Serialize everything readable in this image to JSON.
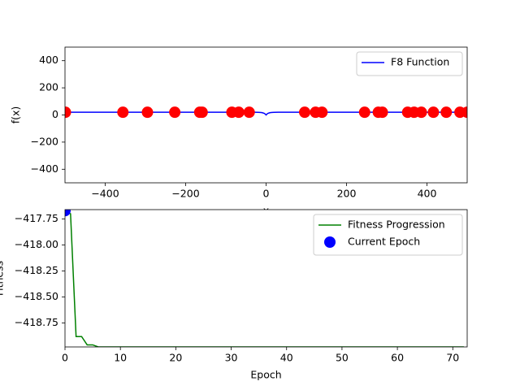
{
  "chart_data": [
    {
      "type": "line",
      "xlabel": "x",
      "ylabel": "f(x)",
      "xlim": [
        -500,
        500
      ],
      "ylim": [
        -500,
        500
      ],
      "xticks": [
        {
          "value": -400,
          "label": "−400"
        },
        {
          "value": -200,
          "label": "−200"
        },
        0,
        200,
        400
      ],
      "yticks": [
        {
          "value": -400,
          "label": "−400"
        },
        {
          "value": -200,
          "label": "−200"
        },
        0,
        200,
        400
      ],
      "legend": "upper right",
      "series": [
        {
          "name": "F8 Function",
          "color": "#0000ff",
          "style": "line",
          "x": [
            -500,
            -100,
            -30,
            -20,
            -15,
            -10,
            -5,
            -2,
            0,
            2,
            5,
            10,
            15,
            20,
            30,
            100,
            500
          ],
          "values": [
            20,
            20,
            19.9,
            19.6,
            19.0,
            17.3,
            12.6,
            6.6,
            0,
            6.6,
            12.6,
            17.3,
            19.0,
            19.6,
            19.9,
            20,
            20
          ]
        },
        {
          "color": "#ff0000",
          "style": "marker",
          "x": [
            -499,
            -356,
            -295,
            -227,
            -165,
            -159,
            -85,
            -68,
            -42,
            96,
            123,
            139,
            245,
            279,
            289,
            352,
            368,
            386,
            416,
            448,
            482,
            500
          ],
          "values": [
            20,
            20,
            20,
            20,
            20,
            20,
            20,
            20,
            20,
            20,
            20,
            20,
            20,
            20,
            20,
            20,
            20,
            20,
            20,
            20,
            20,
            20
          ]
        }
      ]
    },
    {
      "type": "line",
      "xlabel": "Epoch",
      "ylabel": "Fitness",
      "xlim": [
        0,
        72.6
      ],
      "ylim": [
        -418.98,
        -417.66
      ],
      "xticks": [
        0,
        10,
        20,
        30,
        40,
        50,
        60,
        70
      ],
      "yticks": [
        {
          "value": -417.75,
          "label": "−417.75"
        },
        {
          "value": -418.0,
          "label": "−418.00"
        },
        {
          "value": -418.25,
          "label": "−418.25"
        },
        {
          "value": -418.5,
          "label": "−418.50"
        },
        {
          "value": -418.75,
          "label": "−418.75"
        }
      ],
      "legend": "upper right",
      "series": [
        {
          "name": "Fitness Progression",
          "color": "#008000",
          "style": "line",
          "x": [
            0,
            1,
            2,
            3,
            4,
            5,
            6,
            72
          ],
          "values": [
            -417.67,
            -417.7,
            -418.88,
            -418.88,
            -418.96,
            -418.96,
            -418.98,
            -418.98
          ]
        },
        {
          "name": "Current Epoch",
          "color": "#0000ff",
          "style": "marker",
          "x": [
            0
          ],
          "values": [
            -417.67
          ]
        }
      ]
    }
  ]
}
